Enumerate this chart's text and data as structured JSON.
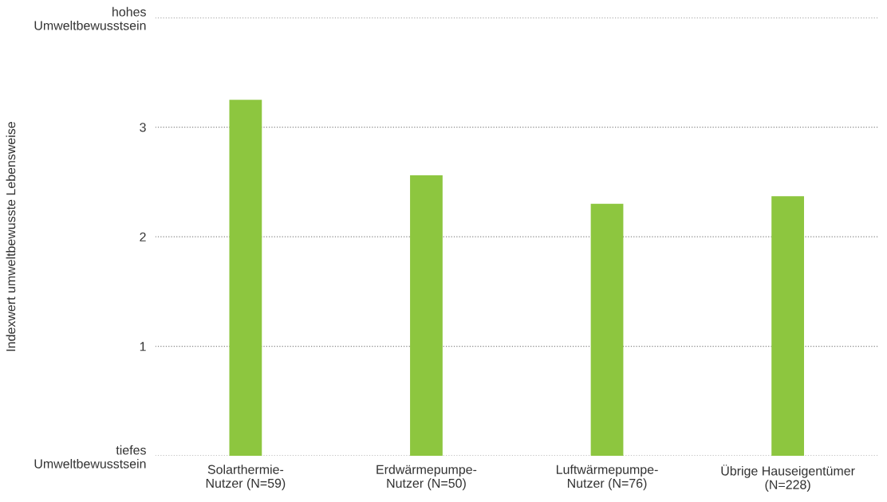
{
  "chart_data": {
    "type": "bar",
    "ylabel": "Indexwert umweltbewusste Lebensweise",
    "categories": [
      "Solarthermie-\nNutzer (N=59)",
      "Erdwärmepumpe-\nNutzer (N=50)",
      "Luftwärmepumpe-\nNutzer (N=76)",
      "Übrige Hauseigentümer\n(N=228)"
    ],
    "values": [
      3.25,
      2.56,
      2.3,
      2.37
    ],
    "color": "#8dc63f",
    "ylim": [
      0,
      4
    ],
    "yticks": [
      {
        "value": 0,
        "label": "tiefes\nUmweltbewusstsein"
      },
      1,
      2,
      3,
      {
        "value": 4,
        "label": "hohes\nUmweltbewusstsein"
      }
    ],
    "grid": "y",
    "line_style": "dotted"
  }
}
